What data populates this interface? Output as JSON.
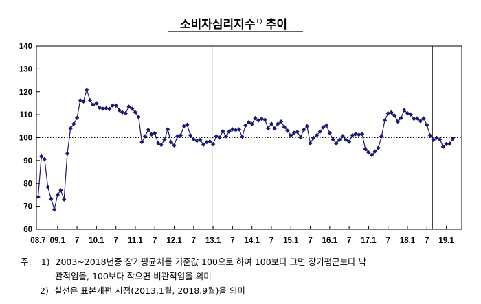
{
  "chart_data": {
    "type": "line",
    "title": "소비자심리지수",
    "title_superscript": "1)",
    "title_suffix": "추이",
    "ylim": [
      60,
      140
    ],
    "yticks": [
      60,
      70,
      80,
      90,
      100,
      110,
      120,
      130,
      140
    ],
    "x_tick_labels": [
      "08.7",
      "09.1",
      "7",
      "10.1",
      "7",
      "11.1",
      "7",
      "12.1",
      "7",
      "13.1",
      "7",
      "14.1",
      "7",
      "15.1",
      "7",
      "16.1",
      "7",
      "17.1",
      "7",
      "18.1",
      "7",
      "19.1"
    ],
    "x_tick_label_month_index": [
      0,
      6,
      12,
      18,
      24,
      30,
      36,
      42,
      48,
      54,
      60,
      66,
      72,
      78,
      84,
      90,
      96,
      102,
      108,
      114,
      120,
      126
    ],
    "reference_line": 100,
    "vertical_markers_label": "표본개편 시점",
    "vertical_markers": [
      "2013.1",
      "2018.9"
    ],
    "line_color": "#1a1a6e",
    "marker": "diamond",
    "series": [
      {
        "start": "2008.7",
        "values": [
          74.1,
          91.8,
          90.6,
          78.4,
          73.2,
          68.6,
          75.0,
          77.0,
          73.0,
          93.0,
          104.0,
          106.0,
          108.6,
          116.3,
          115.8,
          121.0,
          116.3,
          114.3,
          115.0,
          113.0,
          112.6,
          112.8,
          112.5,
          114.0,
          114.0,
          112.0,
          111.0,
          110.6,
          113.5,
          112.6,
          111.0,
          109.0,
          98.0,
          100.6,
          103.4,
          101.4,
          102.0,
          97.6,
          96.8,
          99.1,
          103.6,
          98.0,
          96.6,
          100.6,
          101.0,
          105.0,
          105.6,
          101.0,
          99.3,
          98.6,
          99.0,
          96.9,
          98.0,
          98.3,
          97.1,
          100.6,
          100.0,
          102.8,
          100.6,
          102.7,
          103.6,
          103.3,
          103.6,
          100.4,
          105.3,
          106.7,
          105.9,
          108.5,
          107.5,
          108.2,
          107.8,
          104.0,
          106.0,
          104.0,
          106.0,
          107.0,
          104.6,
          103.0,
          101.0,
          102.1,
          102.5,
          100.1,
          103.4,
          105.0,
          97.5,
          99.9,
          101.0,
          102.6,
          104.5,
          105.3,
          102.0,
          99.2,
          97.4,
          99.0,
          100.7,
          99.0,
          98.2,
          101.0,
          101.6,
          101.3,
          101.6,
          95.0,
          93.5,
          92.4,
          94.0,
          95.5,
          100.6,
          107.5,
          110.6,
          111.0,
          109.6,
          107.0,
          108.5,
          112.0,
          110.6,
          110.1,
          108.2,
          108.4,
          107.2,
          108.4,
          105.5,
          100.9,
          99.0,
          99.9,
          99.2,
          96.0,
          97.2,
          97.3,
          99.5
        ]
      }
    ]
  },
  "notes": {
    "prefix": "주:",
    "n1_num": "1)",
    "n1_line1": "2003~2018년중 장기평균치를 기준값 100으로 하여 100보다 크면 장기평균보다 낙",
    "n1_line2": "관적임을, 100보다 작으면 비관적임을 의미",
    "n2_num": "2)",
    "n2_line1": "실선은 표본개편 시점(2013.1월, 2018.9월)을 의미"
  }
}
